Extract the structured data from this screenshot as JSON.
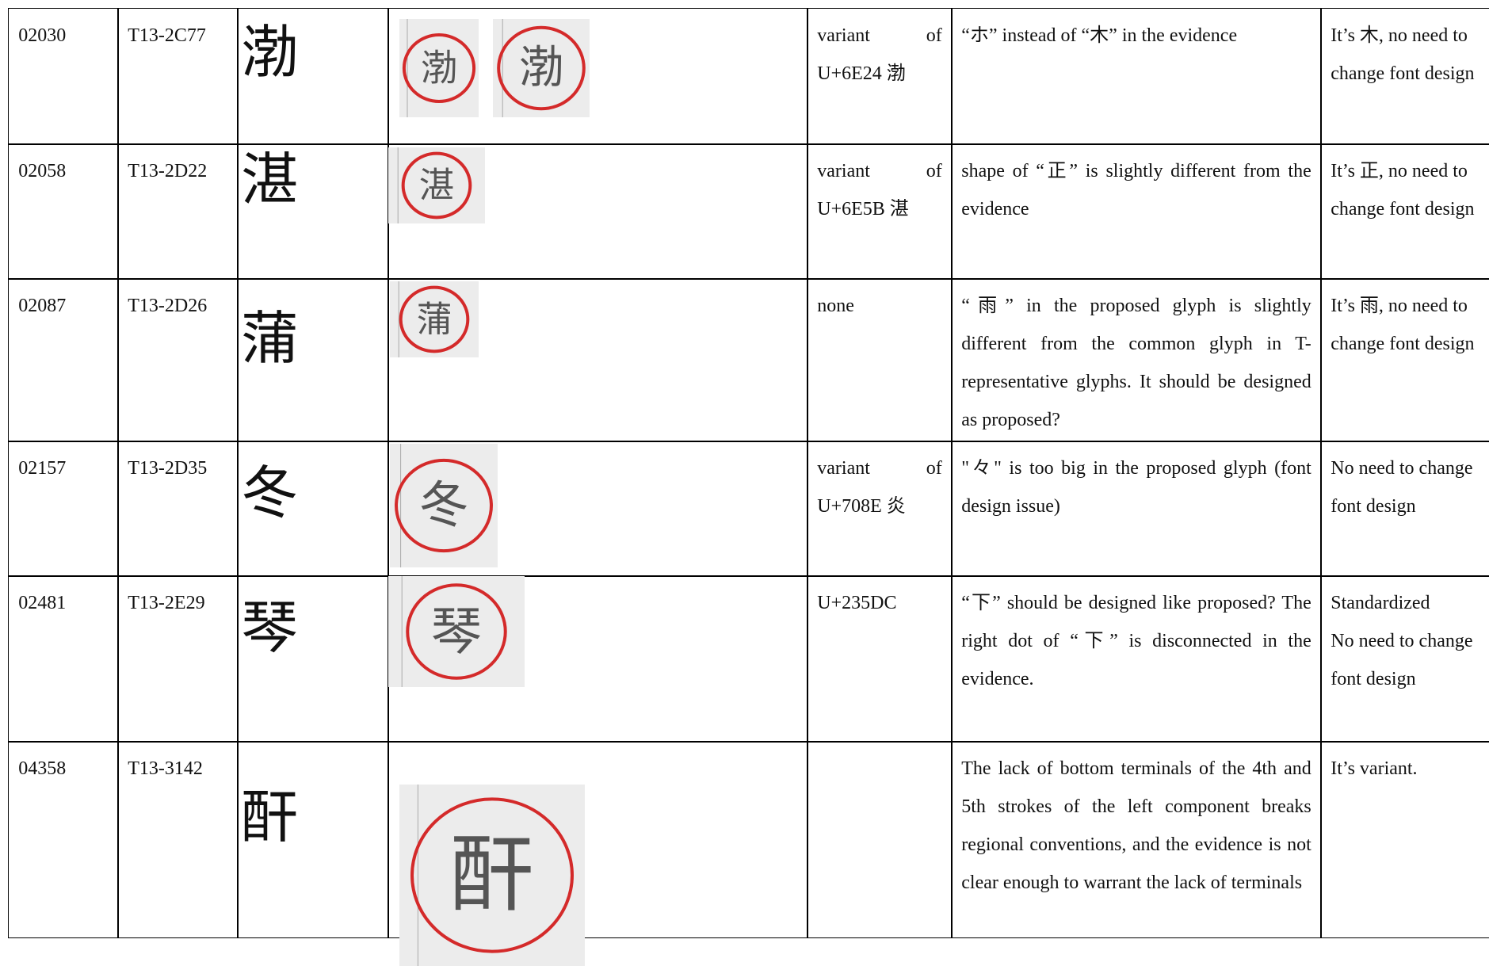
{
  "table": {
    "rows": [
      {
        "id": "02030",
        "code": "T13-2C77",
        "glyph": "渤",
        "variant": "variant of U+6E24 渤",
        "issue": "“ホ” instead of “木” in the evidence",
        "response": "It’s 木, no need to change font design"
      },
      {
        "id": "02058",
        "code": "T13-2D22",
        "glyph": "湛",
        "variant": "variant of U+6E5B 湛",
        "issue": "shape of “正” is slightly different from the evidence",
        "response": "It’s 正, no need to change font design"
      },
      {
        "id": "02087",
        "code": "T13-2D26",
        "glyph": "蒲",
        "variant": "none",
        "issue": "“雨” in the proposed glyph is slightly different from the common glyph in T-representative glyphs. It should be designed as proposed?",
        "response": "It’s 雨, no need to change font design"
      },
      {
        "id": "02157",
        "code": "T13-2D35",
        "glyph": "冬",
        "variant": "variant of U+708E 炎",
        "issue": "\"々\" is too big in the proposed glyph (font design issue)",
        "response": "No need to change font design"
      },
      {
        "id": "02481",
        "code": "T13-2E29",
        "glyph": "琴",
        "variant": "U+235DC",
        "issue": "“下” should be designed like proposed? The right dot of “下” is disconnected in the evidence.",
        "response": [
          "Standardized",
          "No need to change font design"
        ]
      },
      {
        "id": "04358",
        "code": "T13-3142",
        "glyph": "酐",
        "issue": "The lack of bottom terminals of the 4th and 5th strokes of the left component breaks regional conventions, and the evidence is not clear enough to warrant the lack of terminals",
        "response": "It’s variant."
      }
    ]
  }
}
